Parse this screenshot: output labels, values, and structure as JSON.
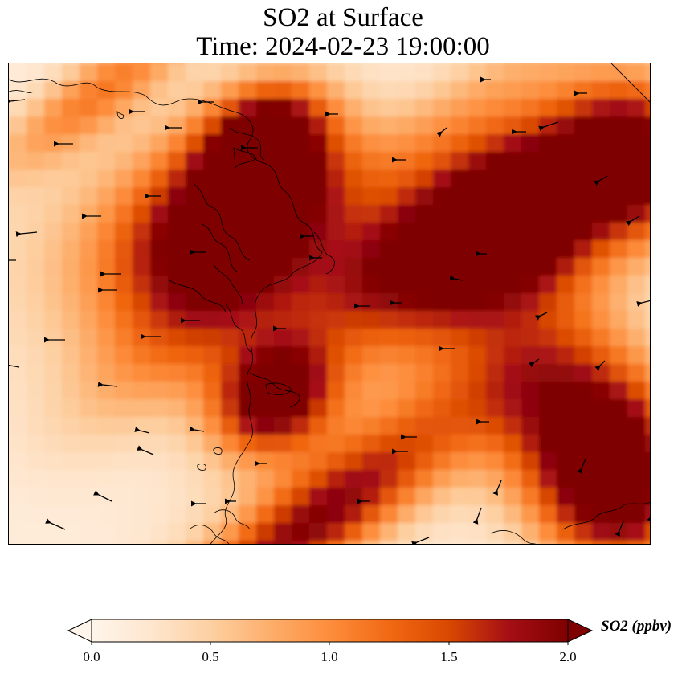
{
  "title": {
    "line1": "SO2 at Surface",
    "line2": "Time: 2024-02-23 19:00:00"
  },
  "map": {
    "variable": "SO2",
    "colormap": [
      "#fff5eb",
      "#fee6ce",
      "#fdd0a2",
      "#fdae6b",
      "#fd8d3c",
      "#f16913",
      "#d94801",
      "#a50f15",
      "#7f0000"
    ],
    "vector_color": "#000000",
    "coastline_color": "#000000"
  },
  "colorbar": {
    "label": "SO2 (ppbv)",
    "min": 0.0,
    "max": 2.0,
    "extend": "both",
    "ticks": [
      "0.0",
      "0.5",
      "1.0",
      "1.5",
      "2.0"
    ]
  }
}
